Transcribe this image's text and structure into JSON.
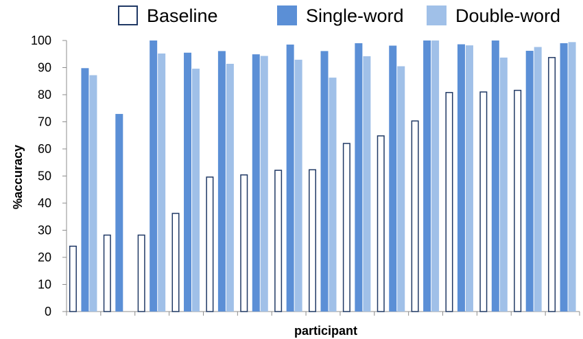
{
  "chart_data": {
    "type": "bar",
    "title": "",
    "xlabel": "participant",
    "ylabel": "%accuracy",
    "ylim": [
      0,
      100
    ],
    "yticks": [
      0,
      10,
      20,
      30,
      40,
      50,
      60,
      70,
      80,
      90,
      100
    ],
    "grid": false,
    "legend_position": "top",
    "categories": [
      "",
      "",
      "",
      "",
      "",
      "",
      "",
      "",
      "",
      "",
      "",
      "",
      "",
      "",
      ""
    ],
    "series": [
      {
        "name": "Baseline",
        "style": "outline",
        "color": "#1f3864",
        "values": [
          24.3,
          28.4,
          28.4,
          36.4,
          49.8,
          50.6,
          52.3,
          52.5,
          62.2,
          65.0,
          70.5,
          81.0,
          81.2,
          81.8,
          93.9
        ]
      },
      {
        "name": "Single-word",
        "style": "filled",
        "color": "#5b8fd6",
        "values": [
          89.8,
          72.9,
          100,
          95.5,
          96.1,
          94.9,
          98.5,
          96.1,
          99.0,
          98.1,
          100,
          98.6,
          100,
          96.2,
          99.0
        ]
      },
      {
        "name": "Double-word",
        "style": "filled",
        "color": "#a0c0e8",
        "values": [
          87.2,
          null,
          95.2,
          89.6,
          91.4,
          94.3,
          92.9,
          86.3,
          94.2,
          90.5,
          100,
          98.2,
          93.7,
          97.6,
          99.4
        ]
      }
    ]
  }
}
